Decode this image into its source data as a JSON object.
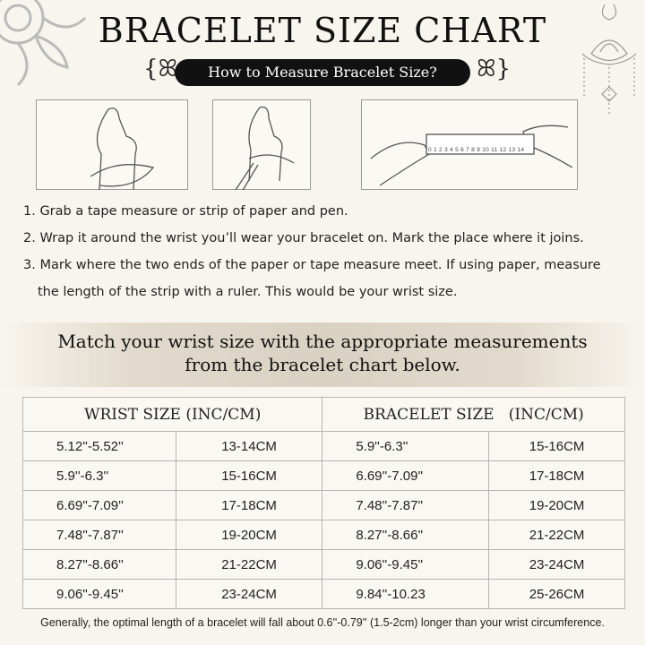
{
  "title": "BRACELET SIZE CHART",
  "subtitle": "How to Measure Bracelet Size?",
  "ruler_numbers": "0 1 2 3 4 5 6 7 8 9 10 11 12 13 14",
  "steps": [
    "1. Grab a tape measure or strip of paper and pen.",
    "2. Wrap it around the wrist you’ll wear your bracelet on. Mark the place where it joins.",
    "3. Mark where the two ends of the paper or tape measure meet. If using paper, measure",
    "the length of the strip with a ruler. This would be your wrist size."
  ],
  "match_text": [
    "Match your wrist size with the appropriate measurements",
    "from the bracelet chart below."
  ],
  "table": {
    "headers": [
      "WRIST SIZE (INC/CM)",
      "BRACELET SIZE   (INC/CM)"
    ],
    "rows": [
      [
        "5.12''-5.52''",
        "13-14CM",
        "5.9''-6.3''",
        "15-16CM"
      ],
      [
        "5.9''-6.3''",
        "15-16CM",
        "6.69''-7.09''",
        "17-18CM"
      ],
      [
        "6.69''-7.09''",
        "17-18CM",
        "7.48''-7.87''",
        "19-20CM"
      ],
      [
        "7.48''-7.87''",
        "19-20CM",
        "8.27''-8.66''",
        "21-22CM"
      ],
      [
        "8.27''-8.66''",
        "21-22CM",
        "9.06''-9.45''",
        "23-24CM"
      ],
      [
        "9.06''-9.45''",
        "23-24CM",
        "9.84''-10.23",
        "25-26CM"
      ]
    ]
  },
  "footnote": "Generally, the optimal length of a bracelet will fall about 0.6''-0.79'' (1.5-2cm) longer than your wrist circumference."
}
